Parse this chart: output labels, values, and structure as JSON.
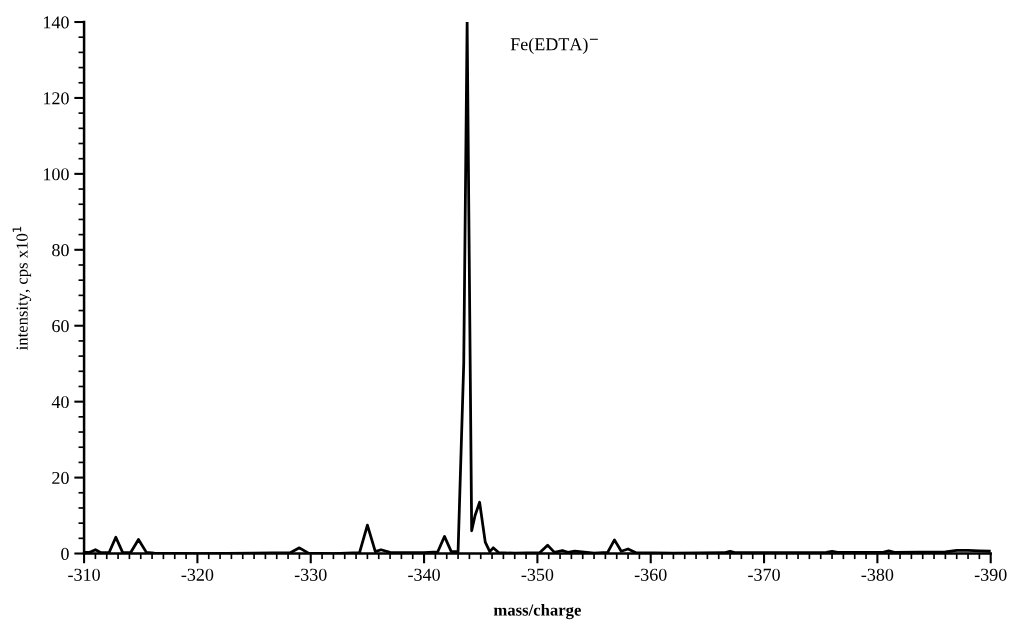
{
  "chart_data": {
    "type": "line",
    "xlabel": "mass/charge",
    "ylabel": "intensity, cps x10$^{1}$",
    "annotations": [
      "Fe(EDTA)$^{−}$"
    ],
    "x": [
      -310,
      -310.5,
      -311,
      -311.5,
      -312.2,
      -312.8,
      -313.4,
      -314.1,
      -314.8,
      -315.5,
      -316.2,
      -320,
      -325,
      -328.2,
      -329,
      -329.8,
      -332,
      -334.3,
      -335,
      -335.7,
      -336.2,
      -337,
      -340,
      -341.2,
      -341.8,
      -342.4,
      -343,
      -343.5,
      -343.8,
      -344.2,
      -344.5,
      -344.9,
      -345.4,
      -345.8,
      -346.1,
      -346.6,
      -348,
      -350.2,
      -350.9,
      -351.5,
      -352.2,
      -352.7,
      -353.3,
      -355,
      -356.2,
      -356.8,
      -357.4,
      -358,
      -358.7,
      -362,
      -366.5,
      -367,
      -367.5,
      -372,
      -375.5,
      -376,
      -376.5,
      -380.5,
      -381,
      -381.5,
      -386,
      -387,
      -388,
      -389,
      -390
    ],
    "series": [
      {
        "color": "#000000",
        "values": [
          0.3,
          0.3,
          1,
          0.2,
          0.2,
          4.3,
          0.3,
          0.2,
          3.7,
          0.3,
          0.1,
          0,
          0.1,
          0.2,
          1.5,
          0.1,
          0,
          0.2,
          7.5,
          0.5,
          1,
          0.3,
          0.2,
          0.4,
          4.5,
          0.5,
          0.5,
          50,
          140,
          6,
          10,
          13.5,
          3,
          0.5,
          1.5,
          0.2,
          0.1,
          0.2,
          2.2,
          0.3,
          0.8,
          0.3,
          0.6,
          0.1,
          0.3,
          3.6,
          0.6,
          1.2,
          0.2,
          0.1,
          0.2,
          0.6,
          0.2,
          0.2,
          0.3,
          0.6,
          0.3,
          0.3,
          0.7,
          0.3,
          0.4,
          0.8,
          0.8,
          0.7,
          0.6
        ]
      }
    ],
    "xlim": [
      -310,
      -390
    ],
    "xticks": [
      -310,
      -320,
      -330,
      -340,
      -350,
      -360,
      -370,
      -380,
      -390
    ],
    "ylim": [
      0,
      140
    ],
    "yticks": [
      0,
      20,
      40,
      60,
      80,
      100,
      120,
      140
    ],
    "grid": false,
    "legend": false,
    "marker": "none",
    "line_style": "solid"
  }
}
